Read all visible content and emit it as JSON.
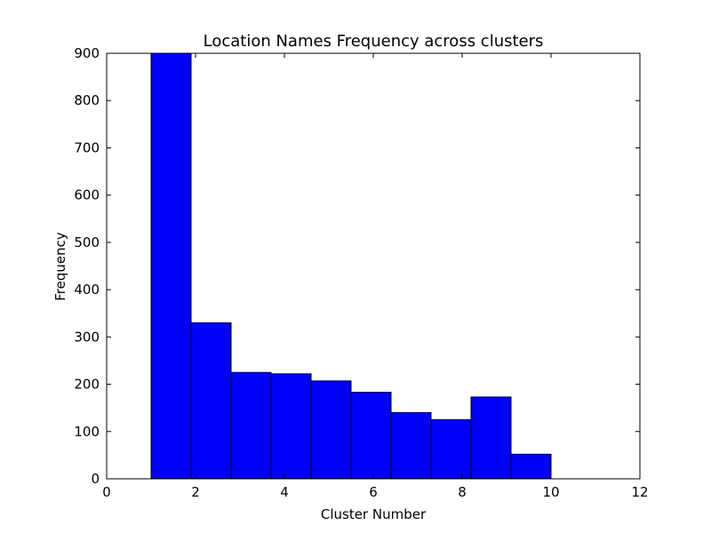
{
  "chart_data": {
    "type": "bar",
    "title": "Location Names Frequency across clusters",
    "xlabel": "Cluster Number",
    "ylabel": "Frequency",
    "xlim": [
      0,
      12
    ],
    "ylim": [
      0,
      900
    ],
    "xticks": [
      0,
      2,
      4,
      6,
      8,
      10,
      12
    ],
    "yticks": [
      0,
      100,
      200,
      300,
      400,
      500,
      600,
      700,
      800,
      900
    ],
    "bins": [
      {
        "x0": 1.0,
        "x1": 1.9,
        "value": 900
      },
      {
        "x0": 1.9,
        "x1": 2.8,
        "value": 330
      },
      {
        "x0": 2.8,
        "x1": 3.7,
        "value": 225
      },
      {
        "x0": 3.7,
        "x1": 4.6,
        "value": 222
      },
      {
        "x0": 4.6,
        "x1": 5.5,
        "value": 207
      },
      {
        "x0": 5.5,
        "x1": 6.4,
        "value": 183
      },
      {
        "x0": 6.4,
        "x1": 7.3,
        "value": 140
      },
      {
        "x0": 7.3,
        "x1": 8.2,
        "value": 125
      },
      {
        "x0": 8.2,
        "x1": 9.1,
        "value": 173
      },
      {
        "x0": 9.1,
        "x1": 10.0,
        "value": 52
      }
    ],
    "bar_color": "#0000ff",
    "edge_color": "#000000",
    "grid": false,
    "legend": false
  }
}
